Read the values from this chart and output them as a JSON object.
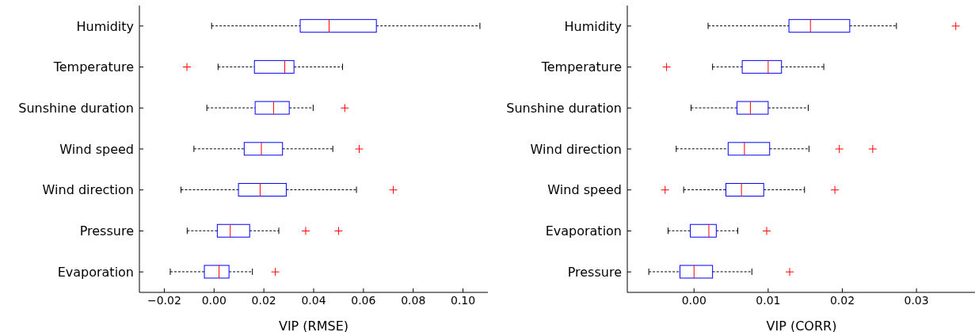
{
  "chart_data": [
    {
      "type": "box",
      "orientation": "horizontal",
      "xlabel": "VIP (RMSE)",
      "categories": [
        "Humidity",
        "Temperature",
        "Sunshine duration",
        "Wind speed",
        "Wind direction",
        "Pressure",
        "Evaporation"
      ],
      "color": "#0000ff",
      "marker": "cross",
      "line_style": "dashed",
      "xlim": [
        -0.03,
        0.11
      ],
      "xticks": [
        {
          "value": -0.02,
          "label": "−0.02"
        },
        {
          "value": 0,
          "label": "0.00"
        },
        {
          "value": 0.02,
          "label": "0.02"
        },
        {
          "value": 0.04,
          "label": "0.04"
        },
        {
          "value": 0.06,
          "label": "0.06"
        },
        {
          "value": 0.08,
          "label": "0.08"
        },
        {
          "value": 0.1,
          "label": "0.10"
        }
      ],
      "boxes": [
        {
          "low": -0.001,
          "q1": 0.0346,
          "median": 0.0462,
          "q3": 0.0652,
          "high": 0.1068
        },
        {
          "low": 0.0016,
          "q1": 0.0162,
          "median": 0.0284,
          "q3": 0.0321,
          "high": 0.0516,
          "outliers": [
            -0.0109
          ]
        },
        {
          "low": -0.0029,
          "q1": 0.0165,
          "median": 0.0239,
          "q3": 0.0302,
          "high": 0.0398,
          "outliers": [
            0.0525
          ]
        },
        {
          "low": -0.0081,
          "q1": 0.0121,
          "median": 0.019,
          "q3": 0.0275,
          "high": 0.0477,
          "outliers": [
            0.0583
          ]
        },
        {
          "low": -0.0133,
          "q1": 0.0098,
          "median": 0.0185,
          "q3": 0.029,
          "high": 0.0572,
          "outliers": [
            0.072
          ]
        },
        {
          "low": -0.0108,
          "q1": 0.0013,
          "median": 0.0065,
          "q3": 0.0143,
          "high": 0.026,
          "outliers": [
            0.0368,
            0.05
          ]
        },
        {
          "low": -0.0176,
          "q1": -0.0039,
          "median": 0.002,
          "q3": 0.006,
          "high": 0.0154,
          "outliers": [
            0.0246
          ]
        }
      ]
    },
    {
      "type": "box",
      "orientation": "horizontal",
      "xlabel": "VIP (CORR)",
      "categories": [
        "Humidity",
        "Temperature",
        "Sunshine duration",
        "Wind direction",
        "Wind speed",
        "Evaporation",
        "Pressure"
      ],
      "color": "#0000ff",
      "marker": "cross",
      "line_style": "dashed",
      "xlim": [
        -0.009,
        0.038
      ],
      "xticks": [
        {
          "value": 0,
          "label": "0.00"
        },
        {
          "value": 0.01,
          "label": "0.01"
        },
        {
          "value": 0.02,
          "label": "0.02"
        },
        {
          "value": 0.03,
          "label": "0.03"
        }
      ],
      "boxes": [
        {
          "low": 0.0019,
          "q1": 0.0128,
          "median": 0.0157,
          "q3": 0.021,
          "high": 0.0273,
          "outliers": [
            0.0353
          ]
        },
        {
          "low": 0.0025,
          "q1": 0.0065,
          "median": 0.01,
          "q3": 0.0118,
          "high": 0.0175,
          "outliers": [
            -0.0037
          ]
        },
        {
          "low": -0.0004,
          "q1": 0.0058,
          "median": 0.0076,
          "q3": 0.01,
          "high": 0.0154
        },
        {
          "low": -0.0024,
          "q1": 0.0046,
          "median": 0.0068,
          "q3": 0.0102,
          "high": 0.0155,
          "outliers": [
            0.0196,
            0.0241
          ]
        },
        {
          "low": -0.0014,
          "q1": 0.0043,
          "median": 0.0064,
          "q3": 0.0094,
          "high": 0.0149,
          "outliers": [
            -0.0039,
            0.019
          ]
        },
        {
          "low": -0.0035,
          "q1": -0.0005,
          "median": 0.002,
          "q3": 0.003,
          "high": 0.0059,
          "outliers": [
            0.0098
          ]
        },
        {
          "low": -0.0061,
          "q1": -0.0019,
          "median": 0,
          "q3": 0.0025,
          "high": 0.0078,
          "outliers": [
            0.0129
          ]
        }
      ]
    }
  ]
}
